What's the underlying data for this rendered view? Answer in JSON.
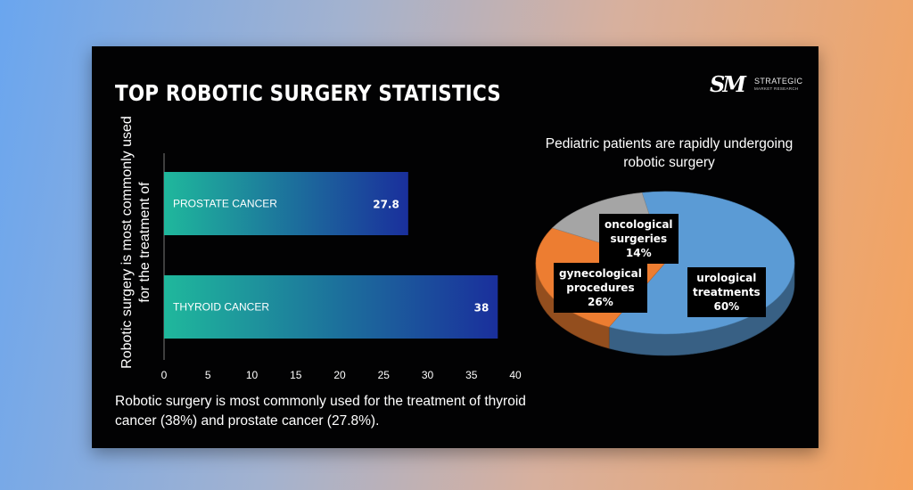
{
  "title": "TOP ROBOTIC SURGERY STATISTICS",
  "logo": {
    "mark": "SM",
    "name": "STRATEGIC",
    "tagline": "MARKET RESEARCH"
  },
  "summary": "Robotic surgery is most commonly used for the treatment of thyroid cancer (38%) and prostate cancer (27.8%).",
  "colors": {
    "bar_start": "#1fb89c",
    "bar_end": "#1a2f9c",
    "pie_urological": "#5b9bd5",
    "pie_gynecological": "#ed7d31",
    "pie_oncological": "#a5a5a5"
  },
  "chart_data": [
    {
      "type": "bar",
      "orientation": "horizontal",
      "ylabel": "Robotic surgery is most commonly used for the treatment of",
      "xlabel": "",
      "categories": [
        "PROSTATE CANCER",
        "THYROID CANCER"
      ],
      "values": [
        27.8,
        38
      ],
      "value_labels": [
        "27.8",
        "38"
      ],
      "xlim": [
        0,
        40
      ],
      "ticks": [
        "0",
        "5",
        "10",
        "15",
        "20",
        "25",
        "30",
        "35",
        "40"
      ],
      "grid": false
    },
    {
      "type": "pie",
      "style": "3d",
      "title": "Pediatric patients are rapidly undergoing robotic surgery",
      "slices": [
        {
          "label_lines": [
            "urological",
            "treatments",
            "60%"
          ],
          "value": 60
        },
        {
          "label_lines": [
            "gynecological",
            "procedures",
            "26%"
          ],
          "value": 26
        },
        {
          "label_lines": [
            "oncological",
            "surgeries",
            "14%"
          ],
          "value": 14
        }
      ]
    }
  ]
}
